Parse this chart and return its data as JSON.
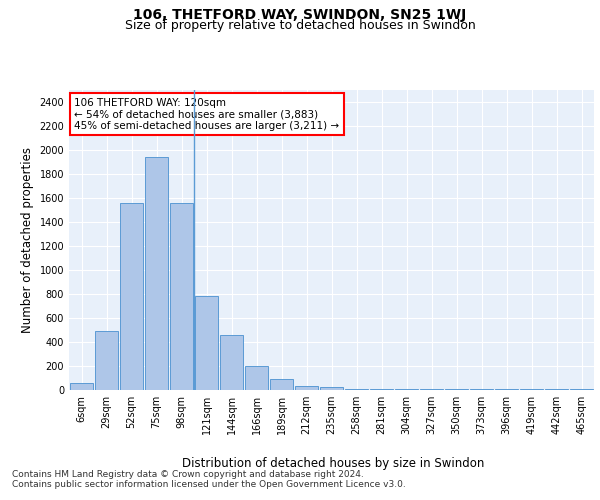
{
  "title": "106, THETFORD WAY, SWINDON, SN25 1WJ",
  "subtitle": "Size of property relative to detached houses in Swindon",
  "xlabel": "Distribution of detached houses by size in Swindon",
  "ylabel": "Number of detached properties",
  "categories": [
    "6sqm",
    "29sqm",
    "52sqm",
    "75sqm",
    "98sqm",
    "121sqm",
    "144sqm",
    "166sqm",
    "189sqm",
    "212sqm",
    "235sqm",
    "258sqm",
    "281sqm",
    "304sqm",
    "327sqm",
    "350sqm",
    "373sqm",
    "396sqm",
    "419sqm",
    "442sqm",
    "465sqm"
  ],
  "values": [
    60,
    490,
    1555,
    1940,
    1555,
    785,
    460,
    200,
    95,
    35,
    28,
    5,
    5,
    5,
    5,
    5,
    5,
    5,
    5,
    5,
    5
  ],
  "bar_color": "#aec6e8",
  "bar_edge_color": "#5b9bd5",
  "vline_index": 5,
  "annotation_text": "106 THETFORD WAY: 120sqm\n← 54% of detached houses are smaller (3,883)\n45% of semi-detached houses are larger (3,211) →",
  "annotation_box_color": "white",
  "annotation_box_edge_color": "red",
  "ylim": [
    0,
    2500
  ],
  "yticks": [
    0,
    200,
    400,
    600,
    800,
    1000,
    1200,
    1400,
    1600,
    1800,
    2000,
    2200,
    2400
  ],
  "bg_color": "#e8f0fa",
  "grid_color": "white",
  "footer_line1": "Contains HM Land Registry data © Crown copyright and database right 2024.",
  "footer_line2": "Contains public sector information licensed under the Open Government Licence v3.0.",
  "title_fontsize": 10,
  "subtitle_fontsize": 9,
  "axis_label_fontsize": 8.5,
  "tick_fontsize": 7,
  "annotation_fontsize": 7.5,
  "footer_fontsize": 6.5
}
